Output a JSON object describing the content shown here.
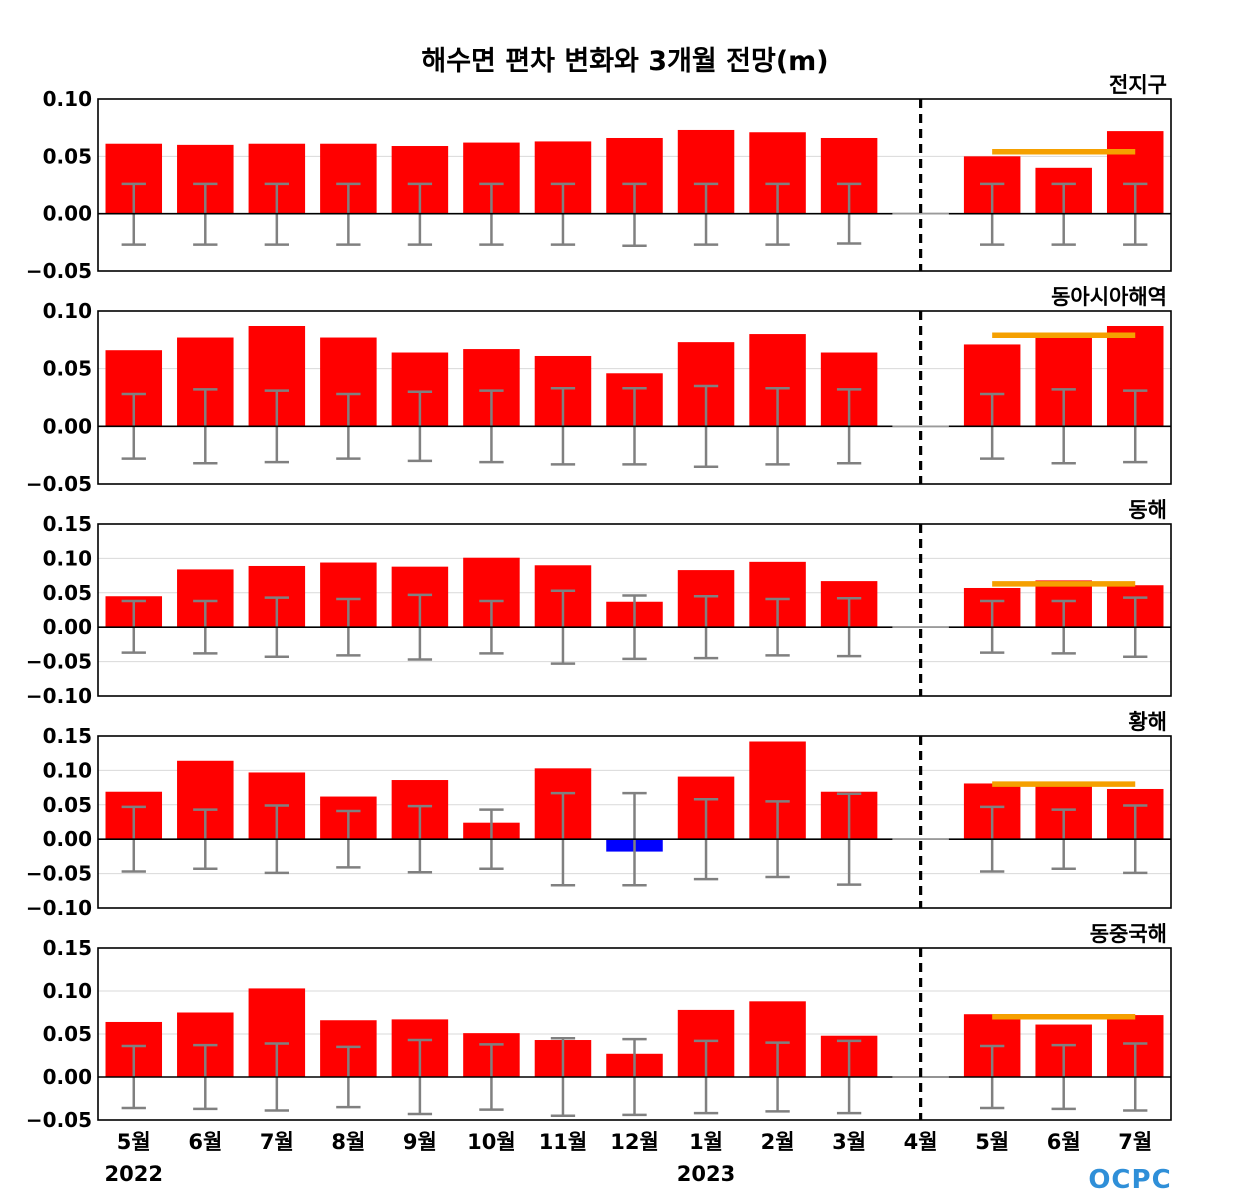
{
  "chart_data": {
    "type": "bar",
    "title": "해수면 편차 변화와 3개월 전망(m)",
    "categories": [
      "5월",
      "6월",
      "7월",
      "8월",
      "9월",
      "10월",
      "11월",
      "12월",
      "1월",
      "2월",
      "3월",
      "4월",
      "5월",
      "6월",
      "7월"
    ],
    "year_labels": [
      {
        "index": 0,
        "text": "2022"
      },
      {
        "index": 8,
        "text": "2023"
      }
    ],
    "forecast_divider_index": 11,
    "colors": {
      "positive": "#ff0000",
      "negative": "#0000ff",
      "outlook": "#f5a000",
      "errorbar": "#808080",
      "zero": "#000000",
      "logo": "#2f8fd8"
    },
    "logo_text": "OCPC",
    "panels": [
      {
        "label": "전지구",
        "ylim": [
          -0.05,
          0.1
        ],
        "yticks": [
          "0.10",
          "0.05",
          "0.00",
          "−0.05"
        ],
        "ytick_values": [
          0.1,
          0.05,
          0.0,
          -0.05
        ],
        "values": [
          0.061,
          0.06,
          0.061,
          0.061,
          0.059,
          0.062,
          0.063,
          0.066,
          0.073,
          0.071,
          0.066,
          0.0,
          0.05,
          0.04,
          0.072
        ],
        "errors_upper": [
          0.026,
          0.026,
          0.026,
          0.026,
          0.026,
          0.026,
          0.026,
          0.026,
          0.026,
          0.026,
          0.026,
          null,
          0.026,
          0.026,
          0.026
        ],
        "errors_lower": [
          -0.027,
          -0.027,
          -0.027,
          -0.027,
          -0.027,
          -0.027,
          -0.027,
          -0.028,
          -0.027,
          -0.027,
          -0.026,
          null,
          -0.027,
          -0.027,
          -0.027
        ],
        "outlook": 0.054
      },
      {
        "label": "동아시아해역",
        "ylim": [
          -0.05,
          0.1
        ],
        "yticks": [
          "0.10",
          "0.05",
          "0.00",
          "−0.05"
        ],
        "ytick_values": [
          0.1,
          0.05,
          0.0,
          -0.05
        ],
        "values": [
          0.066,
          0.077,
          0.087,
          0.077,
          0.064,
          0.067,
          0.061,
          0.046,
          0.073,
          0.08,
          0.064,
          0.0,
          0.071,
          0.079,
          0.087
        ],
        "errors_upper": [
          0.028,
          0.032,
          0.031,
          0.028,
          0.03,
          0.031,
          0.033,
          0.033,
          0.035,
          0.033,
          0.032,
          null,
          0.028,
          0.032,
          0.031
        ],
        "errors_lower": [
          -0.028,
          -0.032,
          -0.031,
          -0.028,
          -0.03,
          -0.031,
          -0.033,
          -0.033,
          -0.035,
          -0.033,
          -0.032,
          null,
          -0.028,
          -0.032,
          -0.031
        ],
        "outlook": 0.079
      },
      {
        "label": "동해",
        "ylim": [
          -0.1,
          0.15
        ],
        "yticks": [
          "0.15",
          "0.10",
          "0.05",
          "0.00",
          "−0.05",
          "−0.10"
        ],
        "ytick_values": [
          0.15,
          0.1,
          0.05,
          0.0,
          -0.05,
          -0.1
        ],
        "values": [
          0.045,
          0.084,
          0.089,
          0.094,
          0.088,
          0.101,
          0.09,
          0.037,
          0.083,
          0.095,
          0.067,
          0.0,
          0.057,
          0.068,
          0.061
        ],
        "errors_upper": [
          0.038,
          0.038,
          0.043,
          0.041,
          0.047,
          0.038,
          0.053,
          0.046,
          0.045,
          0.041,
          0.042,
          null,
          0.038,
          0.038,
          0.043
        ],
        "errors_lower": [
          -0.037,
          -0.038,
          -0.043,
          -0.041,
          -0.047,
          -0.038,
          -0.053,
          -0.046,
          -0.045,
          -0.041,
          -0.042,
          null,
          -0.037,
          -0.038,
          -0.043
        ],
        "outlook": 0.063
      },
      {
        "label": "황해",
        "ylim": [
          -0.1,
          0.15
        ],
        "yticks": [
          "0.15",
          "0.10",
          "0.05",
          "0.00",
          "−0.05",
          "−0.10"
        ],
        "ytick_values": [
          0.15,
          0.1,
          0.05,
          0.0,
          -0.05,
          -0.1
        ],
        "values": [
          0.069,
          0.114,
          0.097,
          0.062,
          0.086,
          0.024,
          0.103,
          -0.018,
          0.091,
          0.142,
          0.069,
          0.0,
          0.081,
          0.079,
          0.073
        ],
        "errors_upper": [
          0.047,
          0.043,
          0.049,
          0.041,
          0.048,
          0.043,
          0.067,
          0.067,
          0.058,
          0.055,
          0.066,
          null,
          0.047,
          0.043,
          0.049
        ],
        "errors_lower": [
          -0.047,
          -0.043,
          -0.049,
          -0.041,
          -0.048,
          -0.043,
          -0.067,
          -0.067,
          -0.058,
          -0.055,
          -0.066,
          null,
          -0.047,
          -0.043,
          -0.049
        ],
        "outlook": 0.08
      },
      {
        "label": "동중국해",
        "ylim": [
          -0.05,
          0.15
        ],
        "yticks": [
          "0.15",
          "0.10",
          "0.05",
          "0.00",
          "−0.05"
        ],
        "ytick_values": [
          0.15,
          0.1,
          0.05,
          0.0,
          -0.05
        ],
        "values": [
          0.064,
          0.075,
          0.103,
          0.066,
          0.067,
          0.051,
          0.043,
          0.027,
          0.078,
          0.088,
          0.048,
          0.0,
          0.073,
          0.061,
          0.072
        ],
        "errors_upper": [
          0.036,
          0.037,
          0.039,
          0.035,
          0.043,
          0.038,
          0.045,
          0.044,
          0.042,
          0.04,
          0.042,
          null,
          0.036,
          0.037,
          0.039
        ],
        "errors_lower": [
          -0.036,
          -0.037,
          -0.039,
          -0.035,
          -0.043,
          -0.038,
          -0.045,
          -0.044,
          -0.042,
          -0.04,
          -0.042,
          null,
          -0.036,
          -0.037,
          -0.039
        ],
        "outlook": 0.07
      }
    ]
  }
}
